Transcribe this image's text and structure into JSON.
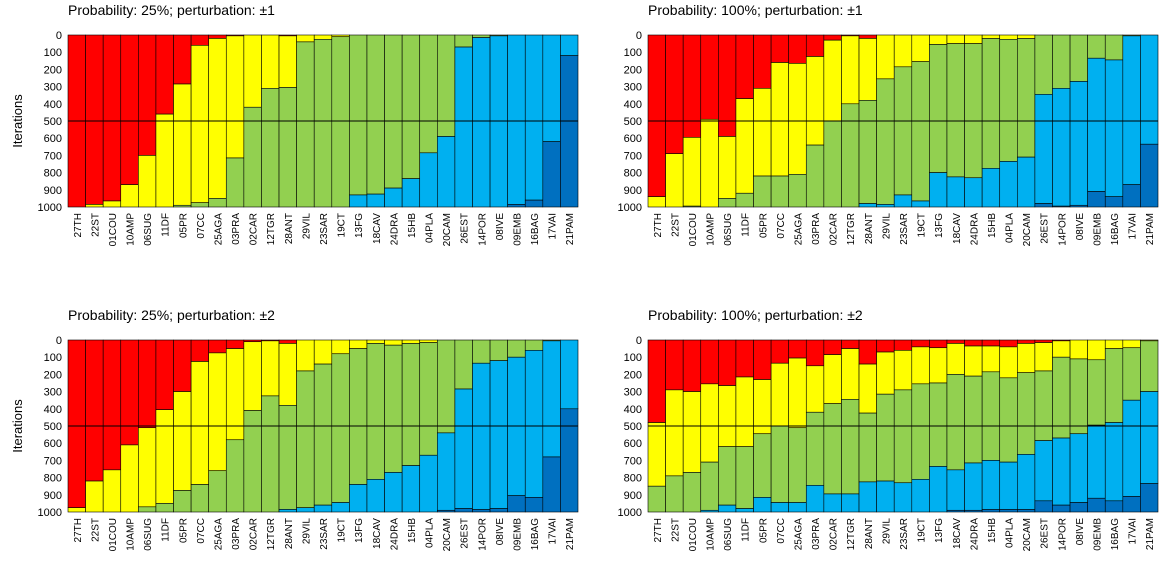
{
  "chart_data": [
    {
      "type": "stacked_bar",
      "title": "Probability: 25%; perturbation: ±1",
      "y_label": "Iterations",
      "categories": [
        "27TH",
        "22ST",
        "01COU",
        "10AMP",
        "06SUG",
        "11DF",
        "05PR",
        "07CC",
        "25AGA",
        "03PRA",
        "02CAR",
        "12TGR",
        "28ANT",
        "29VIL",
        "23SAR",
        "19CT",
        "13FG",
        "18CAV",
        "24DRA",
        "15HB",
        "04PLA",
        "20CAM",
        "26EST",
        "14POR",
        "08IVE",
        "09EMB",
        "16BAG",
        "17VAI",
        "21PAM"
      ],
      "ylim": [
        0,
        1000
      ],
      "y_inverted": true,
      "yticks": [
        0,
        100,
        200,
        300,
        400,
        500,
        600,
        700,
        800,
        900,
        1000
      ],
      "reference_line": 500,
      "series": [
        {
          "color": "#ff0000",
          "values": [
            1000,
            985,
            965,
            870,
            700,
            460,
            285,
            60,
            20,
            5,
            0,
            0,
            5,
            0,
            0,
            0,
            0,
            0,
            0,
            0,
            0,
            0,
            0,
            0,
            0,
            0,
            0,
            0,
            0
          ]
        },
        {
          "color": "#ffff00",
          "values": [
            0,
            15,
            35,
            130,
            300,
            540,
            705,
            915,
            930,
            710,
            420,
            310,
            300,
            40,
            25,
            10,
            0,
            0,
            0,
            0,
            0,
            0,
            0,
            0,
            0,
            0,
            0,
            0,
            0
          ]
        },
        {
          "color": "#92d050",
          "values": [
            0,
            0,
            0,
            0,
            0,
            0,
            10,
            25,
            50,
            285,
            580,
            690,
            695,
            960,
            975,
            990,
            930,
            925,
            890,
            835,
            685,
            590,
            70,
            15,
            5,
            0,
            0,
            0,
            0
          ]
        },
        {
          "color": "#00b0f0",
          "values": [
            0,
            0,
            0,
            0,
            0,
            0,
            0,
            0,
            0,
            0,
            0,
            0,
            0,
            0,
            0,
            0,
            70,
            75,
            110,
            165,
            315,
            410,
            930,
            985,
            995,
            985,
            960,
            620,
            120
          ]
        },
        {
          "color": "#0070c0",
          "values": [
            0,
            0,
            0,
            0,
            0,
            0,
            0,
            0,
            0,
            0,
            0,
            0,
            0,
            0,
            0,
            0,
            0,
            0,
            0,
            0,
            0,
            0,
            0,
            0,
            0,
            15,
            40,
            380,
            880
          ]
        }
      ]
    },
    {
      "type": "stacked_bar",
      "title": "Probability: 100%; perturbation: ±1",
      "categories": [
        "27TH",
        "22ST",
        "01COU",
        "10AMP",
        "06SUG",
        "11DF",
        "05PR",
        "07CC",
        "25AGA",
        "03PRA",
        "02CAR",
        "12TGR",
        "28ANT",
        "29VIL",
        "23SAR",
        "19CT",
        "13FG",
        "18CAV",
        "24DRA",
        "15HB",
        "04PLA",
        "20CAM",
        "26EST",
        "14POR",
        "08IVE",
        "09EMB",
        "16BAG",
        "17VAI",
        "21PAM"
      ],
      "ylim": [
        0,
        1000
      ],
      "y_inverted": true,
      "yticks": [
        0,
        100,
        200,
        300,
        400,
        500,
        600,
        700,
        800,
        900,
        1000
      ],
      "reference_line": 500,
      "series": [
        {
          "color": "#ff0000",
          "values": [
            940,
            690,
            595,
            490,
            590,
            370,
            310,
            160,
            165,
            125,
            30,
            5,
            20,
            0,
            0,
            0,
            0,
            0,
            0,
            0,
            0,
            0,
            0,
            0,
            0,
            0,
            0,
            0,
            0
          ]
        },
        {
          "color": "#ffff00",
          "values": [
            60,
            310,
            400,
            510,
            360,
            550,
            510,
            660,
            645,
            515,
            470,
            395,
            360,
            255,
            185,
            155,
            55,
            50,
            50,
            20,
            25,
            20,
            0,
            0,
            0,
            0,
            0,
            0,
            0
          ]
        },
        {
          "color": "#92d050",
          "values": [
            0,
            0,
            5,
            0,
            50,
            80,
            180,
            180,
            190,
            360,
            500,
            600,
            600,
            730,
            745,
            810,
            745,
            775,
            780,
            755,
            710,
            690,
            345,
            310,
            270,
            135,
            145,
            5,
            0
          ]
        },
        {
          "color": "#00b0f0",
          "values": [
            0,
            0,
            0,
            0,
            0,
            0,
            0,
            0,
            0,
            0,
            0,
            0,
            20,
            15,
            70,
            35,
            200,
            175,
            170,
            225,
            265,
            290,
            635,
            685,
            720,
            775,
            795,
            865,
            635
          ]
        },
        {
          "color": "#0070c0",
          "values": [
            0,
            0,
            0,
            0,
            0,
            0,
            0,
            0,
            0,
            0,
            0,
            0,
            0,
            0,
            0,
            0,
            0,
            0,
            0,
            0,
            0,
            0,
            20,
            5,
            10,
            90,
            60,
            130,
            365
          ]
        }
      ]
    },
    {
      "type": "stacked_bar",
      "title": "Probability: 25%; perturbation: ±2",
      "y_label": "Iterations",
      "categories": [
        "27TH",
        "22ST",
        "01COU",
        "10AMP",
        "06SUG",
        "11DF",
        "05PR",
        "07CC",
        "25AGA",
        "03PRA",
        "02CAR",
        "12TGR",
        "28ANT",
        "29VIL",
        "23SAR",
        "19CT",
        "13FG",
        "18CAV",
        "24DRA",
        "15HB",
        "04PLA",
        "20CAM",
        "26EST",
        "14POR",
        "08IVE",
        "09EMB",
        "16BAG",
        "17VAI",
        "21PAM"
      ],
      "ylim": [
        0,
        1000
      ],
      "y_inverted": true,
      "yticks": [
        0,
        100,
        200,
        300,
        400,
        500,
        600,
        700,
        800,
        900,
        1000
      ],
      "reference_line": 500,
      "series": [
        {
          "color": "#ff0000",
          "values": [
            975,
            820,
            755,
            610,
            510,
            405,
            300,
            125,
            75,
            50,
            10,
            5,
            20,
            0,
            0,
            0,
            0,
            0,
            0,
            0,
            0,
            0,
            0,
            0,
            0,
            0,
            0,
            0,
            0
          ]
        },
        {
          "color": "#ffff00",
          "values": [
            25,
            180,
            245,
            390,
            460,
            545,
            575,
            715,
            685,
            530,
            400,
            320,
            360,
            180,
            140,
            80,
            50,
            20,
            30,
            20,
            15,
            0,
            0,
            0,
            0,
            0,
            0,
            0,
            0
          ]
        },
        {
          "color": "#92d050",
          "values": [
            0,
            0,
            0,
            0,
            30,
            50,
            125,
            160,
            240,
            420,
            590,
            675,
            605,
            795,
            820,
            865,
            790,
            790,
            740,
            710,
            655,
            540,
            285,
            135,
            120,
            100,
            60,
            5,
            0
          ]
        },
        {
          "color": "#00b0f0",
          "values": [
            0,
            0,
            0,
            0,
            0,
            0,
            0,
            0,
            0,
            0,
            0,
            0,
            15,
            25,
            40,
            55,
            160,
            190,
            230,
            270,
            330,
            450,
            695,
            850,
            860,
            805,
            855,
            675,
            400
          ]
        },
        {
          "color": "#0070c0",
          "values": [
            0,
            0,
            0,
            0,
            0,
            0,
            0,
            0,
            0,
            0,
            0,
            0,
            0,
            0,
            0,
            0,
            0,
            0,
            0,
            0,
            0,
            10,
            20,
            15,
            20,
            95,
            85,
            320,
            600
          ]
        }
      ]
    },
    {
      "type": "stacked_bar",
      "title": "Probability: 100%; perturbation: ±2",
      "categories": [
        "27TH",
        "22ST",
        "01COU",
        "10AMP",
        "06SUG",
        "11DF",
        "05PR",
        "07CC",
        "25AGA",
        "03PRA",
        "02CAR",
        "12TGR",
        "28ANT",
        "29VIL",
        "23SAR",
        "19CT",
        "13FG",
        "18CAV",
        "24DRA",
        "15HB",
        "04PLA",
        "20CAM",
        "26EST",
        "14POR",
        "08IVE",
        "09EMB",
        "16BAG",
        "17VAI",
        "21PAM"
      ],
      "ylim": [
        0,
        1000
      ],
      "y_inverted": true,
      "yticks": [
        0,
        100,
        200,
        300,
        400,
        500,
        600,
        700,
        800,
        900,
        1000
      ],
      "reference_line": 500,
      "series": [
        {
          "color": "#ff0000",
          "values": [
            480,
            290,
            300,
            255,
            265,
            215,
            230,
            135,
            105,
            150,
            85,
            50,
            140,
            70,
            60,
            40,
            45,
            20,
            35,
            35,
            40,
            20,
            15,
            5,
            0,
            0,
            0,
            0,
            0
          ]
        },
        {
          "color": "#ffff00",
          "values": [
            370,
            500,
            470,
            455,
            355,
            405,
            315,
            365,
            405,
            270,
            285,
            295,
            285,
            245,
            230,
            215,
            205,
            180,
            175,
            150,
            180,
            170,
            165,
            95,
            110,
            115,
            50,
            45,
            5
          ]
        },
        {
          "color": "#92d050",
          "values": [
            150,
            210,
            230,
            280,
            340,
            360,
            370,
            445,
            435,
            425,
            525,
            550,
            400,
            505,
            540,
            555,
            485,
            555,
            505,
            515,
            490,
            475,
            405,
            470,
            435,
            380,
            430,
            305,
            295
          ]
        },
        {
          "color": "#00b0f0",
          "values": [
            0,
            0,
            0,
            10,
            40,
            20,
            85,
            55,
            55,
            155,
            105,
            105,
            175,
            180,
            170,
            190,
            265,
            235,
            275,
            285,
            275,
            320,
            350,
            390,
            400,
            425,
            455,
            560,
            535
          ]
        },
        {
          "color": "#0070c0",
          "values": [
            0,
            0,
            0,
            0,
            0,
            0,
            0,
            0,
            0,
            0,
            0,
            0,
            0,
            0,
            0,
            0,
            0,
            10,
            10,
            15,
            15,
            15,
            65,
            40,
            55,
            80,
            65,
            90,
            165
          ]
        }
      ]
    }
  ]
}
